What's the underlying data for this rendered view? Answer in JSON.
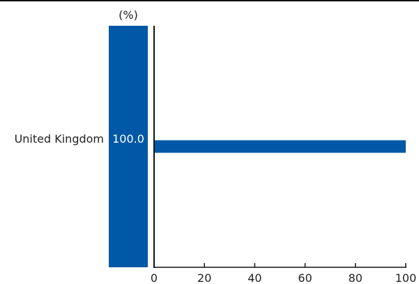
{
  "unit_label": "(%)",
  "colors": {
    "bar": "#0058a6",
    "axis": "#111111",
    "text": "#222222"
  },
  "chart_data": {
    "type": "bar",
    "orientation": "horizontal",
    "categories": [
      "United Kingdom"
    ],
    "values": [
      100.0
    ],
    "value_labels": [
      "100.0"
    ],
    "xlim": [
      0,
      100
    ],
    "xticks": [
      0,
      20,
      40,
      60,
      80,
      100
    ],
    "title": "",
    "xlabel": "",
    "ylabel": "",
    "grid": false,
    "legend": "none"
  }
}
